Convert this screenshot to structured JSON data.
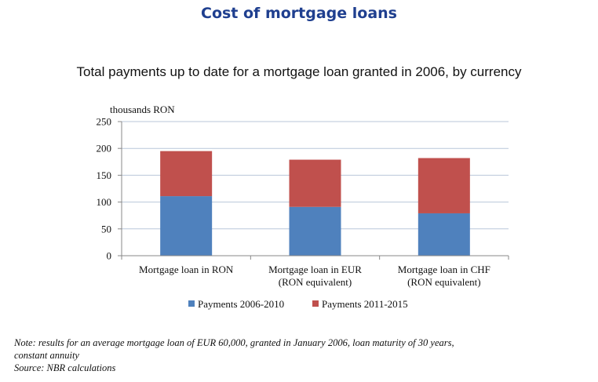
{
  "header": {
    "title": "Cost of mortgage loans"
  },
  "chart_data": {
    "type": "bar",
    "stacked": true,
    "title": "Total payments up to date for a mortgage loan granted in 2006, by currency",
    "ylabel": "thousands RON",
    "ylim": [
      0,
      250
    ],
    "yticks": [
      0,
      50,
      100,
      150,
      200,
      250
    ],
    "grid": true,
    "legend_position": "bottom",
    "categories": [
      [
        "Mortgage loan in RON"
      ],
      [
        "Mortgage loan in EUR",
        "(RON equivalent)"
      ],
      [
        "Mortgage loan in CHF",
        "(RON equivalent)"
      ]
    ],
    "series": [
      {
        "name": "Payments 2006-2010",
        "color": "#4f81bd",
        "values": [
          111,
          91,
          79
        ]
      },
      {
        "name": "Payments 2011-2015",
        "color": "#c0504d",
        "values": [
          84,
          88,
          103
        ]
      }
    ]
  },
  "footer": {
    "note_line1": "Note: results for an average mortgage loan of EUR 60,000, granted in January 2006, loan maturity of 30  years,",
    "note_line2": "constant annuity",
    "source": " Source: NBR calculations"
  }
}
